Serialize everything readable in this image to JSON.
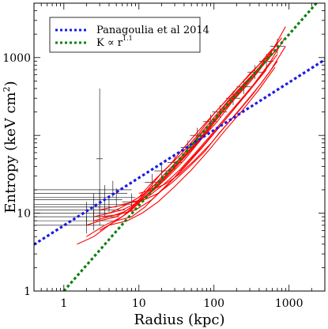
{
  "chart_data": {
    "type": "line",
    "xlabel": "Radius (kpc)",
    "ylabel_main": "Entropy (keV cm",
    "ylabel_sup": "2",
    "ylabel_close": ")",
    "x_scale": "log",
    "y_scale": "log",
    "xlim": [
      0.4,
      3000
    ],
    "ylim": [
      1,
      5000
    ],
    "x_ticks": [
      1,
      10,
      100,
      1000
    ],
    "x_tick_labels": [
      "1",
      "10",
      "100",
      "1000"
    ],
    "y_ticks": [
      1,
      10,
      1000
    ],
    "y_tick_labels": [
      "1",
      "10",
      "1000"
    ],
    "grid": false,
    "legend_position": "top-left",
    "legend": [
      {
        "label": "Panagoulia et al 2014",
        "color": "#1a1ae6",
        "style": "dotted"
      },
      {
        "label_main": "K ∝ r",
        "label_sup": "1.1",
        "color": "#108010",
        "style": "dotted"
      }
    ],
    "series": [
      {
        "label_ref": 0,
        "color": "#1a1ae6",
        "x": [
          0.4,
          3000
        ],
        "y": [
          3.96,
          940
        ]
      },
      {
        "label_ref": 1,
        "color": "#108010",
        "x": [
          1,
          3000
        ],
        "y": [
          1.0,
          6640
        ]
      }
    ],
    "profiles_color": "#ff0000",
    "profiles": [
      {
        "x": [
          2,
          3,
          5,
          8,
          12,
          20,
          35,
          60,
          100,
          170,
          300,
          500,
          800
        ],
        "y": [
          7,
          8,
          9,
          12,
          18,
          33,
          55,
          100,
          190,
          330,
          620,
          1000,
          1800
        ]
      },
      {
        "x": [
          2.5,
          4,
          6,
          10,
          15,
          25,
          40,
          70,
          120,
          200,
          350,
          600
        ],
        "y": [
          9,
          10,
          12,
          16,
          25,
          40,
          70,
          130,
          230,
          400,
          700,
          1300
        ]
      },
      {
        "x": [
          3,
          5,
          8,
          12,
          20,
          30,
          50,
          80,
          130,
          220,
          400,
          700
        ],
        "y": [
          6,
          8,
          11,
          16,
          25,
          38,
          65,
          110,
          200,
          360,
          750,
          1500
        ]
      },
      {
        "x": [
          1.5,
          2.5,
          4,
          7,
          11,
          18,
          30,
          50,
          90,
          150,
          250,
          450
        ],
        "y": [
          4,
          5,
          7,
          10,
          15,
          24,
          42,
          75,
          140,
          260,
          450,
          800
        ]
      },
      {
        "x": [
          4,
          6,
          10,
          16,
          25,
          40,
          65,
          110,
          180,
          300,
          500,
          900
        ],
        "y": [
          10,
          11,
          14,
          20,
          30,
          48,
          85,
          150,
          280,
          480,
          900,
          2500
        ]
      },
      {
        "x": [
          3,
          4.5,
          7,
          11,
          17,
          28,
          45,
          75,
          125,
          210,
          360,
          650
        ],
        "y": [
          11,
          12,
          13,
          17,
          24,
          36,
          60,
          105,
          190,
          340,
          620,
          1200
        ]
      },
      {
        "x": [
          5,
          8,
          12,
          18,
          28,
          45,
          70,
          110,
          180,
          300,
          500
        ],
        "y": [
          8,
          9,
          12,
          18,
          27,
          45,
          72,
          120,
          210,
          380,
          700
        ]
      },
      {
        "x": [
          2,
          3.5,
          6,
          9,
          14,
          22,
          36,
          60,
          100,
          160,
          280,
          480,
          750
        ],
        "y": [
          5,
          7,
          9,
          13,
          20,
          32,
          52,
          95,
          170,
          290,
          520,
          880,
          1400
        ]
      },
      {
        "x": [
          6,
          9,
          14,
          22,
          35,
          55,
          90,
          150,
          250,
          420,
          700
        ],
        "y": [
          13,
          14,
          17,
          24,
          36,
          58,
          100,
          180,
          320,
          580,
          1100
        ]
      },
      {
        "x": [
          3,
          5,
          9,
          15,
          25,
          42,
          70,
          120,
          200,
          330,
          550,
          850
        ],
        "y": [
          9,
          9.5,
          11,
          15,
          24,
          40,
          70,
          130,
          240,
          440,
          850,
          1700
        ]
      },
      {
        "x": [
          4,
          7,
          11,
          18,
          30,
          50,
          85,
          140,
          240,
          400,
          650
        ],
        "y": [
          7,
          8,
          10,
          14,
          22,
          36,
          64,
          115,
          210,
          390,
          750
        ]
      },
      {
        "x": [
          8,
          12,
          18,
          28,
          45,
          75,
          120,
          200,
          330,
          550,
          900
        ],
        "y": [
          14,
          15,
          18,
          25,
          38,
          62,
          110,
          190,
          340,
          650,
          1400
        ]
      },
      {
        "x": [
          2.5,
          4,
          6.5,
          10,
          16,
          26,
          42,
          70,
          115,
          190,
          320,
          540
        ],
        "y": [
          8,
          9,
          10.5,
          14,
          21,
          34,
          58,
          100,
          180,
          320,
          580,
          1000
        ]
      },
      {
        "x": [
          10,
          15,
          23,
          35,
          55,
          90,
          150,
          250,
          420,
          700
        ],
        "y": [
          18,
          20,
          24,
          32,
          48,
          78,
          140,
          250,
          460,
          900
        ]
      }
    ],
    "errorbar_color": "#000000",
    "errorbars": [
      {
        "x": 3,
        "y": 50,
        "ylo": 8,
        "yhi": 400,
        "xlo": 2.7,
        "xhi": 3.3
      },
      {
        "x": 2.5,
        "y": 12,
        "ylo": 8,
        "yhi": 18,
        "xlo": 0.4,
        "xhi": 5
      },
      {
        "x": 3,
        "y": 15,
        "ylo": 11,
        "yhi": 20,
        "xlo": 0.4,
        "xhi": 6
      },
      {
        "x": 3.5,
        "y": 18,
        "ylo": 14,
        "yhi": 23,
        "xlo": 0.4,
        "xhi": 7
      },
      {
        "x": 2,
        "y": 10,
        "ylo": 7,
        "yhi": 14,
        "xlo": 0.4,
        "xhi": 4
      },
      {
        "x": 3,
        "y": 9,
        "ylo": 7,
        "yhi": 12,
        "xlo": 0.4,
        "xhi": 5.5
      },
      {
        "x": 4,
        "y": 13,
        "ylo": 10,
        "yhi": 17,
        "xlo": 0.4,
        "xhi": 8
      },
      {
        "x": 2.5,
        "y": 8,
        "ylo": 6,
        "yhi": 11,
        "xlo": 0.4,
        "xhi": 4.5
      },
      {
        "x": 5,
        "y": 16,
        "ylo": 12,
        "yhi": 21,
        "xlo": 0.4,
        "xhi": 9
      },
      {
        "x": 3.5,
        "y": 11,
        "ylo": 9,
        "yhi": 14,
        "xlo": 0.4,
        "xhi": 6.5
      },
      {
        "x": 2,
        "y": 7,
        "ylo": 5.5,
        "yhi": 9,
        "xlo": 0.4,
        "xhi": 3.5
      },
      {
        "x": 4.5,
        "y": 20,
        "ylo": 16,
        "yhi": 26,
        "xlo": 0.4,
        "xhi": 8
      },
      {
        "x": 15,
        "y": 25,
        "ylo": 20,
        "yhi": 32,
        "xlo": 12,
        "xhi": 19
      },
      {
        "x": 30,
        "y": 45,
        "ylo": 36,
        "yhi": 56,
        "xlo": 24,
        "xhi": 38
      },
      {
        "x": 60,
        "y": 100,
        "ylo": 82,
        "yhi": 125,
        "xlo": 48,
        "xhi": 75
      },
      {
        "x": 120,
        "y": 200,
        "ylo": 165,
        "yhi": 245,
        "xlo": 95,
        "xhi": 150
      },
      {
        "x": 250,
        "y": 420,
        "ylo": 340,
        "yhi": 520,
        "xlo": 200,
        "xhi": 310
      },
      {
        "x": 500,
        "y": 900,
        "ylo": 720,
        "yhi": 1120,
        "xlo": 400,
        "xhi": 620
      },
      {
        "x": 8,
        "y": 14,
        "ylo": 11,
        "yhi": 18,
        "xlo": 6,
        "xhi": 10
      },
      {
        "x": 20,
        "y": 35,
        "ylo": 28,
        "yhi": 44,
        "xlo": 16,
        "xhi": 25
      },
      {
        "x": 45,
        "y": 70,
        "ylo": 57,
        "yhi": 86,
        "xlo": 36,
        "xhi": 56
      },
      {
        "x": 90,
        "y": 150,
        "ylo": 122,
        "yhi": 185,
        "xlo": 72,
        "xhi": 112
      },
      {
        "x": 180,
        "y": 300,
        "ylo": 245,
        "yhi": 370,
        "xlo": 145,
        "xhi": 225
      },
      {
        "x": 350,
        "y": 650,
        "ylo": 530,
        "yhi": 800,
        "xlo": 280,
        "xhi": 440
      },
      {
        "x": 700,
        "y": 1400,
        "ylo": 1120,
        "yhi": 1750,
        "xlo": 560,
        "xhi": 880
      }
    ]
  }
}
